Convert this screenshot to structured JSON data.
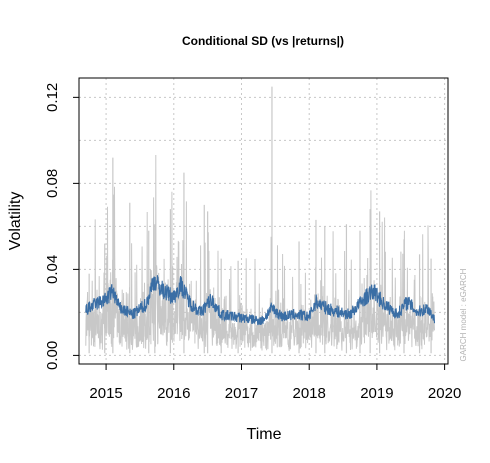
{
  "chart_data": {
    "type": "line",
    "title": "Conditional SD (vs |returns|)",
    "xlabel": "Time",
    "ylabel": "Volatility",
    "side_note": "GARCH model : eGARCH",
    "xlim": [
      2014.6,
      2020.05
    ],
    "ylim": [
      -0.004,
      0.129
    ],
    "x_ticks": [
      2015,
      2016,
      2017,
      2018,
      2019,
      2020
    ],
    "y_ticks": [
      0.0,
      0.04,
      0.08,
      0.12
    ],
    "y_tick_labels": [
      "0.00",
      "0.04",
      "0.08",
      "0.12"
    ],
    "grid": true,
    "colors": {
      "abs_returns": "#c8c8c8",
      "conditional_sd": "#3a6ea5",
      "grid": "#c8c8c8"
    },
    "date_range": [
      "2014-09",
      "2019-11"
    ],
    "series": [
      {
        "key": "abs_returns",
        "x_start": 2014.7,
        "x_end": 2019.85,
        "spikes": [
          {
            "x": 2014.75,
            "y": 0.038
          },
          {
            "x": 2014.98,
            "y": 0.052
          },
          {
            "x": 2015.1,
            "y": 0.092
          },
          {
            "x": 2015.35,
            "y": 0.071
          },
          {
            "x": 2015.63,
            "y": 0.058
          },
          {
            "x": 2015.72,
            "y": 0.061
          },
          {
            "x": 2015.95,
            "y": 0.068
          },
          {
            "x": 2016.15,
            "y": 0.085
          },
          {
            "x": 2016.45,
            "y": 0.07
          },
          {
            "x": 2016.5,
            "y": 0.067
          },
          {
            "x": 2016.7,
            "y": 0.045
          },
          {
            "x": 2016.95,
            "y": 0.044
          },
          {
            "x": 2017.45,
            "y": 0.125
          },
          {
            "x": 2017.85,
            "y": 0.053
          },
          {
            "x": 2018.1,
            "y": 0.063
          },
          {
            "x": 2018.23,
            "y": 0.06
          },
          {
            "x": 2018.55,
            "y": 0.061
          },
          {
            "x": 2018.75,
            "y": 0.058
          },
          {
            "x": 2018.9,
            "y": 0.068
          },
          {
            "x": 2019.04,
            "y": 0.067
          },
          {
            "x": 2019.4,
            "y": 0.054
          },
          {
            "x": 2019.63,
            "y": 0.047
          },
          {
            "x": 2019.8,
            "y": 0.045
          }
        ]
      },
      {
        "key": "conditional_sd",
        "points": [
          [
            2014.7,
            0.021
          ],
          [
            2014.85,
            0.024
          ],
          [
            2015.0,
            0.026
          ],
          [
            2015.1,
            0.03
          ],
          [
            2015.2,
            0.022
          ],
          [
            2015.4,
            0.019
          ],
          [
            2015.6,
            0.024
          ],
          [
            2015.7,
            0.035
          ],
          [
            2015.85,
            0.03
          ],
          [
            2016.0,
            0.027
          ],
          [
            2016.1,
            0.033
          ],
          [
            2016.25,
            0.024
          ],
          [
            2016.4,
            0.02
          ],
          [
            2016.55,
            0.026
          ],
          [
            2016.7,
            0.019
          ],
          [
            2016.9,
            0.018
          ],
          [
            2017.1,
            0.017
          ],
          [
            2017.3,
            0.016
          ],
          [
            2017.45,
            0.022
          ],
          [
            2017.6,
            0.018
          ],
          [
            2017.8,
            0.019
          ],
          [
            2018.0,
            0.018
          ],
          [
            2018.1,
            0.025
          ],
          [
            2018.25,
            0.022
          ],
          [
            2018.45,
            0.02
          ],
          [
            2018.6,
            0.019
          ],
          [
            2018.8,
            0.026
          ],
          [
            2018.95,
            0.03
          ],
          [
            2019.1,
            0.024
          ],
          [
            2019.3,
            0.019
          ],
          [
            2019.45,
            0.025
          ],
          [
            2019.6,
            0.02
          ],
          [
            2019.75,
            0.022
          ],
          [
            2019.85,
            0.017
          ]
        ]
      }
    ]
  }
}
